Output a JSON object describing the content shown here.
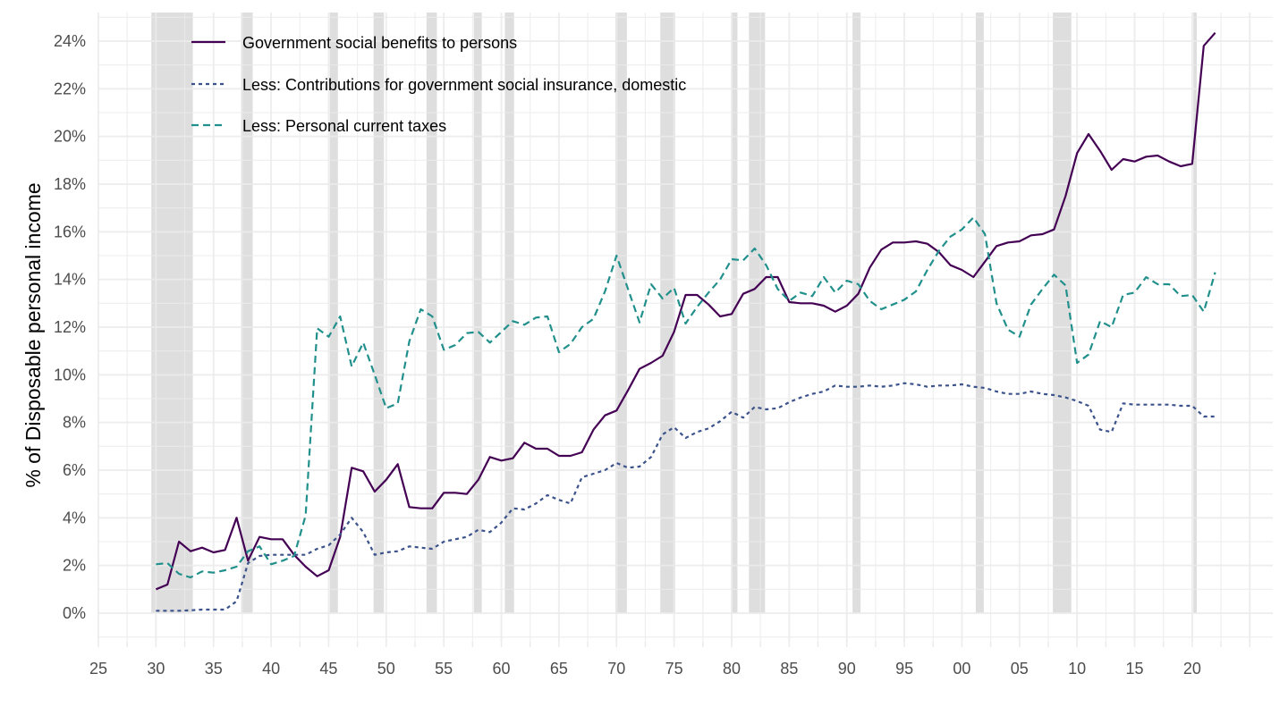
{
  "chart_data": {
    "type": "line",
    "title": "",
    "xlabel": "",
    "ylabel": "% of Disposable personal income",
    "xlim": [
      1925,
      2027
    ],
    "ylim": [
      -1.2,
      25.2
    ],
    "x_ticks": [
      1925,
      1930,
      1935,
      1940,
      1945,
      1950,
      1955,
      1960,
      1965,
      1970,
      1975,
      1980,
      1985,
      1990,
      1995,
      2000,
      2005,
      2010,
      2015,
      2020
    ],
    "x_tick_labels": [
      "25",
      "30",
      "35",
      "40",
      "45",
      "50",
      "55",
      "60",
      "65",
      "70",
      "75",
      "80",
      "85",
      "90",
      "95",
      "00",
      "05",
      "10",
      "15",
      "20"
    ],
    "y_ticks": [
      0,
      2,
      4,
      6,
      8,
      10,
      12,
      14,
      16,
      18,
      20,
      22,
      24
    ],
    "y_tick_labels": [
      "0%",
      "2%",
      "4%",
      "6%",
      "8%",
      "10%",
      "12%",
      "14%",
      "16%",
      "18%",
      "20%",
      "22%",
      "24%"
    ],
    "grid": true,
    "legend_position": "top-left",
    "x": [
      1929,
      1930,
      1931,
      1932,
      1933,
      1934,
      1935,
      1936,
      1937,
      1938,
      1939,
      1940,
      1941,
      1942,
      1943,
      1944,
      1945,
      1946,
      1947,
      1948,
      1949,
      1950,
      1951,
      1952,
      1953,
      1954,
      1955,
      1956,
      1957,
      1958,
      1959,
      1960,
      1961,
      1962,
      1963,
      1964,
      1965,
      1966,
      1967,
      1968,
      1969,
      1970,
      1971,
      1972,
      1973,
      1974,
      1975,
      1976,
      1977,
      1978,
      1979,
      1980,
      1981,
      1982,
      1983,
      1984,
      1985,
      1986,
      1987,
      1988,
      1989,
      1990,
      1991,
      1992,
      1993,
      1994,
      1995,
      1996,
      1997,
      1998,
      1999,
      2000,
      2001,
      2002,
      2003,
      2004,
      2005,
      2006,
      2007,
      2008,
      2009,
      2010,
      2011,
      2012,
      2013,
      2014,
      2015,
      2016,
      2017,
      2018,
      2019,
      2020,
      2021,
      2022
    ],
    "series": [
      {
        "name": "Government social benefits to persons",
        "color": "#440154",
        "dash": "solid",
        "values": [
          null,
          1.0,
          1.2,
          3.0,
          2.6,
          2.75,
          2.55,
          2.65,
          4.0,
          2.2,
          3.2,
          3.1,
          3.1,
          2.45,
          1.95,
          1.55,
          1.8,
          3.2,
          6.1,
          5.95,
          5.1,
          5.6,
          6.25,
          4.45,
          4.4,
          4.4,
          5.05,
          5.05,
          5.0,
          5.6,
          6.55,
          6.4,
          6.5,
          7.15,
          6.9,
          6.9,
          6.6,
          6.6,
          6.75,
          7.7,
          8.3,
          8.5,
          9.35,
          10.25,
          10.5,
          10.8,
          11.8,
          13.35,
          13.35,
          12.95,
          12.45,
          12.55,
          13.4,
          13.6,
          14.1,
          14.1,
          13.05,
          13.0,
          13.0,
          12.9,
          12.65,
          12.9,
          13.4,
          14.5,
          15.25,
          15.55,
          15.55,
          15.6,
          15.5,
          15.15,
          14.6,
          14.4,
          14.1,
          14.75,
          15.4,
          15.55,
          15.6,
          15.85,
          15.9,
          16.1,
          17.5,
          19.3,
          20.1,
          19.4,
          18.6,
          19.05,
          18.95,
          19.15,
          19.2,
          18.95,
          18.75,
          18.85,
          23.8,
          24.35
        ]
      },
      {
        "name": "Less: Contributions for government social insurance, domestic",
        "color": "#3b528b",
        "dash": "dotted",
        "values": [
          null,
          0.1,
          0.1,
          0.1,
          0.12,
          0.15,
          0.15,
          0.15,
          0.5,
          2.1,
          2.4,
          2.45,
          2.45,
          2.45,
          2.45,
          2.7,
          2.85,
          3.3,
          4.0,
          3.4,
          2.45,
          2.55,
          2.6,
          2.8,
          2.75,
          2.7,
          3.0,
          3.1,
          3.2,
          3.5,
          3.4,
          3.8,
          4.4,
          4.35,
          4.6,
          4.95,
          4.75,
          4.6,
          5.7,
          5.85,
          6.0,
          6.3,
          6.1,
          6.15,
          6.55,
          7.5,
          7.8,
          7.35,
          7.6,
          7.75,
          8.05,
          8.45,
          8.2,
          8.65,
          8.55,
          8.6,
          8.85,
          9.05,
          9.2,
          9.3,
          9.55,
          9.5,
          9.5,
          9.55,
          9.5,
          9.55,
          9.65,
          9.6,
          9.5,
          9.55,
          9.55,
          9.6,
          9.5,
          9.45,
          9.3,
          9.2,
          9.2,
          9.3,
          9.2,
          9.15,
          9.05,
          8.9,
          8.7,
          7.7,
          7.6,
          8.8,
          8.75,
          8.75,
          8.75,
          8.75,
          8.7,
          8.7,
          8.25,
          8.25
        ]
      },
      {
        "name": "Less: Personal current taxes",
        "color": "#21908c",
        "dash": "dashed",
        "values": [
          null,
          2.05,
          2.1,
          1.65,
          1.5,
          1.75,
          1.7,
          1.8,
          1.95,
          2.6,
          2.8,
          2.05,
          2.2,
          2.4,
          4.1,
          11.95,
          11.6,
          12.45,
          10.35,
          11.35,
          10.0,
          8.6,
          8.8,
          11.4,
          12.75,
          12.45,
          11.05,
          11.25,
          11.75,
          11.8,
          11.35,
          11.8,
          12.25,
          12.1,
          12.4,
          12.45,
          10.95,
          11.3,
          12.0,
          12.35,
          13.5,
          15.0,
          13.6,
          12.2,
          13.8,
          13.2,
          13.65,
          12.15,
          12.85,
          13.45,
          14.0,
          14.85,
          14.8,
          15.3,
          14.6,
          13.6,
          13.1,
          13.45,
          13.3,
          14.1,
          13.45,
          13.95,
          13.8,
          13.1,
          12.75,
          12.95,
          13.15,
          13.5,
          14.4,
          15.2,
          15.8,
          16.1,
          16.6,
          15.9,
          13.0,
          11.9,
          11.6,
          12.95,
          13.6,
          14.2,
          13.75,
          10.5,
          10.85,
          12.25,
          12.0,
          13.35,
          13.45,
          14.1,
          13.8,
          13.8,
          13.3,
          13.35,
          12.65,
          14.3
        ]
      }
    ],
    "recessions": [
      [
        1929.6,
        1933.2
      ],
      [
        1937.4,
        1938.4
      ],
      [
        1945.1,
        1945.8
      ],
      [
        1948.9,
        1949.8
      ],
      [
        1953.5,
        1954.4
      ],
      [
        1957.6,
        1958.3
      ],
      [
        1960.3,
        1961.1
      ],
      [
        1969.9,
        1970.9
      ],
      [
        1973.8,
        1975.1
      ],
      [
        1980.0,
        1980.5
      ],
      [
        1981.5,
        1982.9
      ],
      [
        1990.5,
        1991.2
      ],
      [
        2001.2,
        2001.9
      ],
      [
        2007.9,
        2009.5
      ],
      [
        2020.1,
        2020.4
      ]
    ]
  }
}
